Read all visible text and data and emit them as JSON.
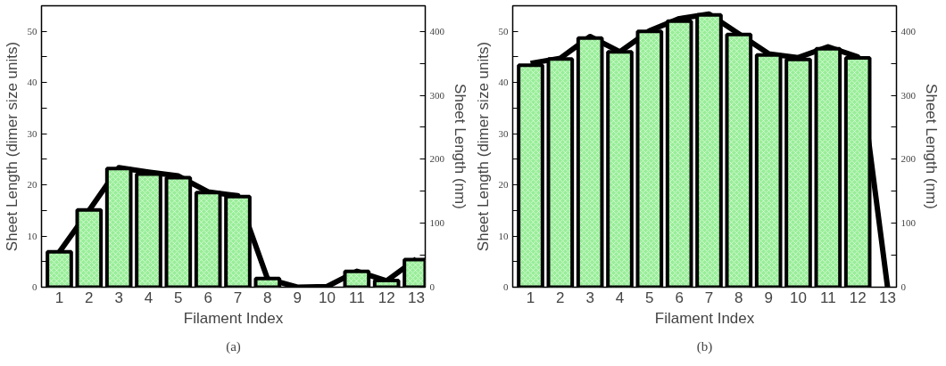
{
  "chart_data": [
    {
      "type": "bar",
      "annotations": [
        "(a)"
      ],
      "xlabel": "Filament Index",
      "ylabel": "Sheet Length (dimer size units)",
      "y2label": "Sheet Length (nm)",
      "x": [
        1,
        2,
        3,
        4,
        5,
        6,
        7,
        8,
        9,
        10,
        11,
        12,
        13
      ],
      "xlim": [
        0.4,
        13.3
      ],
      "xticks": [
        1,
        2,
        3,
        4,
        5,
        6,
        7,
        8,
        9,
        10,
        11,
        12,
        13
      ],
      "ylim": [
        0,
        55
      ],
      "yticks": [
        0,
        {
          "value": 5,
          "label": null
        },
        10,
        {
          "value": 15,
          "label": null
        },
        20,
        {
          "value": 25,
          "label": null
        },
        30,
        {
          "value": 35,
          "label": null
        },
        40,
        {
          "value": 45,
          "label": null
        },
        50
      ],
      "y2lim": [
        0,
        440
      ],
      "y2ticks": [
        0,
        {
          "value": 50,
          "label": null
        },
        100,
        {
          "value": 150,
          "label": null
        },
        200,
        {
          "value": 250,
          "label": null
        },
        300,
        {
          "value": 350,
          "label": null
        },
        400
      ],
      "grid": false,
      "series": [
        {
          "color": "#99ee99",
          "values": [
            6.9,
            15.1,
            23.2,
            22.1,
            21.4,
            18.5,
            17.7,
            1.7,
            null,
            null,
            3.1,
            1.3,
            5.4
          ]
        },
        {
          "type": "line",
          "axis": "y2",
          "color": "#000000",
          "values": [
            55,
            120,
            187,
            180,
            174,
            149,
            143,
            13,
            0,
            1,
            25,
            10,
            44
          ]
        }
      ]
    },
    {
      "type": "bar",
      "annotations": [
        "(b)"
      ],
      "xlabel": "Filament Index",
      "ylabel": "Sheet Length (dimer size units)",
      "y2label": "Sheet Length (nm)",
      "x": [
        1,
        2,
        3,
        4,
        5,
        6,
        7,
        8,
        9,
        10,
        11,
        12,
        13
      ],
      "xlim": [
        0.4,
        13.3
      ],
      "xticks": [
        1,
        2,
        3,
        4,
        5,
        6,
        7,
        8,
        9,
        10,
        11,
        12,
        13
      ],
      "ylim": [
        0,
        55
      ],
      "yticks": [
        0,
        {
          "value": 5,
          "label": null
        },
        10,
        {
          "value": 15,
          "label": null
        },
        20,
        {
          "value": 25,
          "label": null
        },
        30,
        {
          "value": 35,
          "label": null
        },
        40,
        {
          "value": 45,
          "label": null
        },
        50
      ],
      "y2lim": [
        0,
        440
      ],
      "y2ticks": [
        0,
        {
          "value": 50,
          "label": null
        },
        100,
        {
          "value": 150,
          "label": null
        },
        200,
        {
          "value": 250,
          "label": null
        },
        300,
        {
          "value": 350,
          "label": null
        },
        400
      ],
      "grid": false,
      "series": [
        {
          "color": "#99ee99",
          "values": [
            43.4,
            44.6,
            48.7,
            46.0,
            50.0,
            52.0,
            53.2,
            49.4,
            45.4,
            44.5,
            46.6,
            44.8,
            null
          ]
        },
        {
          "type": "line",
          "axis": "y2",
          "color": "#000000",
          "values": [
            350,
            358,
            392,
            368,
            401,
            420,
            427,
            396,
            365,
            359,
            376,
            360,
            0
          ]
        }
      ]
    }
  ]
}
